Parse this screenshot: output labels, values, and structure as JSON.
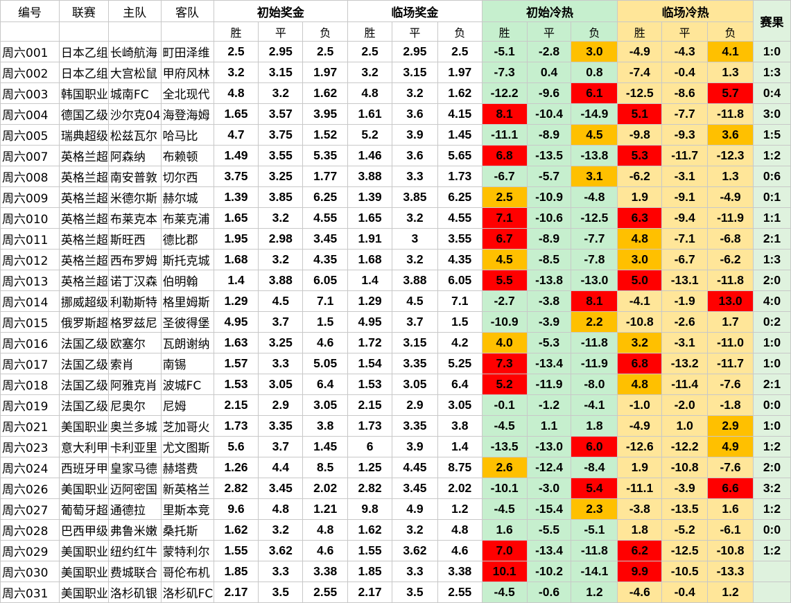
{
  "headers": {
    "id": "编号",
    "league": "联赛",
    "home": "主队",
    "away": "客队",
    "init_prize": "初始奖金",
    "final_prize": "临场奖金",
    "init_heat": "初始冷热",
    "final_heat": "临场冷热",
    "result": "赛果",
    "win": "胜",
    "draw": "平",
    "loss": "负"
  },
  "colors": {
    "red": "#ff0000",
    "orange": "#ffc000",
    "green_fill": "#c6efce",
    "yellow_fill": "#ffe699"
  },
  "rows": [
    {
      "id": "周六001",
      "league": "日本乙组",
      "home": "长崎航海",
      "away": "町田泽维",
      "o": [
        "2.5",
        "2.95",
        "2.5"
      ],
      "c": [
        "2.5",
        "2.95",
        "2.5"
      ],
      "ih": [
        "-5.1",
        "-2.8",
        "3.0"
      ],
      "fh": [
        "-4.9",
        "-4.3",
        "4.1"
      ],
      "res": "1:0",
      "ihc": [
        "",
        "",
        "o"
      ],
      "fhc": [
        "",
        "",
        "o"
      ]
    },
    {
      "id": "周六002",
      "league": "日本乙组",
      "home": "大宫松鼠",
      "away": "甲府风林",
      "o": [
        "3.2",
        "3.15",
        "1.97"
      ],
      "c": [
        "3.2",
        "3.15",
        "1.97"
      ],
      "ih": [
        "-7.3",
        "0.4",
        "0.8"
      ],
      "fh": [
        "-7.4",
        "-0.4",
        "1.3"
      ],
      "res": "1:3",
      "ihc": [
        "",
        "",
        ""
      ],
      "fhc": [
        "",
        "",
        ""
      ]
    },
    {
      "id": "周六003",
      "league": "韩国职业",
      "home": "城南FC",
      "away": "全北现代",
      "o": [
        "4.8",
        "3.2",
        "1.62"
      ],
      "c": [
        "4.8",
        "3.2",
        "1.62"
      ],
      "ih": [
        "-12.2",
        "-9.6",
        "6.1"
      ],
      "fh": [
        "-12.5",
        "-8.6",
        "5.7"
      ],
      "res": "0:4",
      "ihc": [
        "",
        "",
        "r"
      ],
      "fhc": [
        "",
        "",
        "r"
      ]
    },
    {
      "id": "周六004",
      "league": "德国乙级",
      "home": "沙尔克04",
      "away": "海登海姆",
      "o": [
        "1.65",
        "3.57",
        "3.95"
      ],
      "c": [
        "1.61",
        "3.6",
        "4.15"
      ],
      "ih": [
        "8.1",
        "-10.4",
        "-14.9"
      ],
      "fh": [
        "5.1",
        "-7.7",
        "-11.8"
      ],
      "res": "3:0",
      "ihc": [
        "r",
        "",
        ""
      ],
      "fhc": [
        "r",
        "",
        ""
      ]
    },
    {
      "id": "周六005",
      "league": "瑞典超级",
      "home": "松兹瓦尔",
      "away": "哈马比",
      "o": [
        "4.7",
        "3.75",
        "1.52"
      ],
      "c": [
        "5.2",
        "3.9",
        "1.45"
      ],
      "ih": [
        "-11.1",
        "-8.9",
        "4.5"
      ],
      "fh": [
        "-9.8",
        "-9.3",
        "3.6"
      ],
      "res": "1:5",
      "ihc": [
        "",
        "",
        "o"
      ],
      "fhc": [
        "",
        "",
        "o"
      ]
    },
    {
      "id": "周六007",
      "league": "英格兰超",
      "home": "阿森纳",
      "away": "布赖顿",
      "o": [
        "1.49",
        "3.55",
        "5.35"
      ],
      "c": [
        "1.46",
        "3.6",
        "5.65"
      ],
      "ih": [
        "6.8",
        "-13.5",
        "-13.8"
      ],
      "fh": [
        "5.3",
        "-11.7",
        "-12.3"
      ],
      "res": "1:2",
      "ihc": [
        "r",
        "",
        ""
      ],
      "fhc": [
        "r",
        "",
        ""
      ]
    },
    {
      "id": "周六008",
      "league": "英格兰超",
      "home": "南安普敦",
      "away": "切尔西",
      "o": [
        "3.75",
        "3.25",
        "1.77"
      ],
      "c": [
        "3.88",
        "3.3",
        "1.73"
      ],
      "ih": [
        "-6.7",
        "-5.7",
        "3.1"
      ],
      "fh": [
        "-6.2",
        "-3.1",
        "1.3"
      ],
      "res": "0:6",
      "ihc": [
        "",
        "",
        "o"
      ],
      "fhc": [
        "",
        "",
        ""
      ]
    },
    {
      "id": "周六009",
      "league": "英格兰超",
      "home": "米德尔斯",
      "away": "赫尔城",
      "o": [
        "1.39",
        "3.85",
        "6.25"
      ],
      "c": [
        "1.39",
        "3.85",
        "6.25"
      ],
      "ih": [
        "2.5",
        "-10.9",
        "-4.8"
      ],
      "fh": [
        "1.9",
        "-9.1",
        "-4.9"
      ],
      "res": "0:1",
      "ihc": [
        "o",
        "",
        ""
      ],
      "fhc": [
        "",
        "",
        ""
      ]
    },
    {
      "id": "周六010",
      "league": "英格兰超",
      "home": "布莱克本",
      "away": "布莱克浦",
      "o": [
        "1.65",
        "3.2",
        "4.55"
      ],
      "c": [
        "1.65",
        "3.2",
        "4.55"
      ],
      "ih": [
        "7.1",
        "-10.6",
        "-12.5"
      ],
      "fh": [
        "6.3",
        "-9.4",
        "-11.9"
      ],
      "res": "1:1",
      "ihc": [
        "r",
        "",
        ""
      ],
      "fhc": [
        "r",
        "",
        ""
      ]
    },
    {
      "id": "周六011",
      "league": "英格兰超",
      "home": "斯旺西",
      "away": "德比郡",
      "o": [
        "1.95",
        "2.98",
        "3.45"
      ],
      "c": [
        "1.91",
        "3",
        "3.55"
      ],
      "ih": [
        "6.7",
        "-8.9",
        "-7.7"
      ],
      "fh": [
        "4.8",
        "-7.1",
        "-6.8"
      ],
      "res": "2:1",
      "ihc": [
        "r",
        "",
        ""
      ],
      "fhc": [
        "o",
        "",
        ""
      ]
    },
    {
      "id": "周六012",
      "league": "英格兰超",
      "home": "西布罗姆",
      "away": "斯托克城",
      "o": [
        "1.68",
        "3.2",
        "4.35"
      ],
      "c": [
        "1.68",
        "3.2",
        "4.35"
      ],
      "ih": [
        "4.5",
        "-8.5",
        "-7.8"
      ],
      "fh": [
        "3.0",
        "-6.7",
        "-6.2"
      ],
      "res": "1:3",
      "ihc": [
        "o",
        "",
        ""
      ],
      "fhc": [
        "o",
        "",
        ""
      ]
    },
    {
      "id": "周六013",
      "league": "英格兰超",
      "home": "诺丁汉森",
      "away": "伯明翰",
      "o": [
        "1.4",
        "3.88",
        "6.05"
      ],
      "c": [
        "1.4",
        "3.88",
        "6.05"
      ],
      "ih": [
        "5.5",
        "-13.8",
        "-13.0"
      ],
      "fh": [
        "5.0",
        "-13.1",
        "-11.8"
      ],
      "res": "2:0",
      "ihc": [
        "r",
        "",
        ""
      ],
      "fhc": [
        "r",
        "",
        ""
      ]
    },
    {
      "id": "周六014",
      "league": "挪威超级",
      "home": "利勒斯特",
      "away": "格里姆斯",
      "o": [
        "1.29",
        "4.5",
        "7.1"
      ],
      "c": [
        "1.29",
        "4.5",
        "7.1"
      ],
      "ih": [
        "-2.7",
        "-3.8",
        "8.1"
      ],
      "fh": [
        "-4.1",
        "-1.9",
        "13.0"
      ],
      "res": "4:0",
      "ihc": [
        "",
        "",
        "r"
      ],
      "fhc": [
        "",
        "",
        "r"
      ]
    },
    {
      "id": "周六015",
      "league": "俄罗斯超",
      "home": "格罗兹尼",
      "away": "圣彼得堡",
      "o": [
        "4.95",
        "3.7",
        "1.5"
      ],
      "c": [
        "4.95",
        "3.7",
        "1.5"
      ],
      "ih": [
        "-10.9",
        "-3.9",
        "2.2"
      ],
      "fh": [
        "-10.8",
        "-2.6",
        "1.7"
      ],
      "res": "0:2",
      "ihc": [
        "",
        "",
        "o"
      ],
      "fhc": [
        "",
        "",
        ""
      ]
    },
    {
      "id": "周六016",
      "league": "法国乙级",
      "home": "欧塞尔",
      "away": "瓦朗谢纳",
      "o": [
        "1.63",
        "3.25",
        "4.6"
      ],
      "c": [
        "1.72",
        "3.15",
        "4.2"
      ],
      "ih": [
        "4.0",
        "-5.3",
        "-11.8"
      ],
      "fh": [
        "3.2",
        "-3.1",
        "-11.0"
      ],
      "res": "1:0",
      "ihc": [
        "o",
        "",
        ""
      ],
      "fhc": [
        "o",
        "",
        ""
      ]
    },
    {
      "id": "周六017",
      "league": "法国乙级",
      "home": "索肖",
      "away": "南锡",
      "o": [
        "1.57",
        "3.3",
        "5.05"
      ],
      "c": [
        "1.54",
        "3.35",
        "5.25"
      ],
      "ih": [
        "7.3",
        "-13.4",
        "-11.9"
      ],
      "fh": [
        "6.8",
        "-13.2",
        "-11.7"
      ],
      "res": "1:0",
      "ihc": [
        "r",
        "",
        ""
      ],
      "fhc": [
        "r",
        "",
        ""
      ]
    },
    {
      "id": "周六018",
      "league": "法国乙级",
      "home": "阿雅克肖",
      "away": "波城FC",
      "o": [
        "1.53",
        "3.05",
        "6.4"
      ],
      "c": [
        "1.53",
        "3.05",
        "6.4"
      ],
      "ih": [
        "5.2",
        "-11.9",
        "-8.0"
      ],
      "fh": [
        "4.8",
        "-11.4",
        "-7.6"
      ],
      "res": "2:1",
      "ihc": [
        "r",
        "",
        ""
      ],
      "fhc": [
        "o",
        "",
        ""
      ]
    },
    {
      "id": "周六019",
      "league": "法国乙级",
      "home": "尼奥尔",
      "away": "尼姆",
      "o": [
        "2.15",
        "2.9",
        "3.05"
      ],
      "c": [
        "2.15",
        "2.9",
        "3.05"
      ],
      "ih": [
        "-0.1",
        "-1.2",
        "-4.1"
      ],
      "fh": [
        "-1.0",
        "-2.0",
        "-1.8"
      ],
      "res": "0:0",
      "ihc": [
        "",
        "",
        ""
      ],
      "fhc": [
        "",
        "",
        ""
      ]
    },
    {
      "id": "周六021",
      "league": "美国职业",
      "home": "奥兰多城",
      "away": "芝加哥火",
      "o": [
        "1.73",
        "3.35",
        "3.8"
      ],
      "c": [
        "1.73",
        "3.35",
        "3.8"
      ],
      "ih": [
        "-4.5",
        "1.1",
        "1.8"
      ],
      "fh": [
        "-4.9",
        "1.0",
        "2.9"
      ],
      "res": "1:0",
      "ihc": [
        "",
        "",
        ""
      ],
      "fhc": [
        "",
        "",
        "o"
      ]
    },
    {
      "id": "周六023",
      "league": "意大利甲",
      "home": "卡利亚里",
      "away": "尤文图斯",
      "o": [
        "5.6",
        "3.7",
        "1.45"
      ],
      "c": [
        "6",
        "3.9",
        "1.4"
      ],
      "ih": [
        "-13.5",
        "-13.0",
        "6.0"
      ],
      "fh": [
        "-12.6",
        "-12.2",
        "4.9"
      ],
      "res": "1:2",
      "ihc": [
        "",
        "",
        "r"
      ],
      "fhc": [
        "",
        "",
        "o"
      ]
    },
    {
      "id": "周六024",
      "league": "西班牙甲",
      "home": "皇家马德",
      "away": "赫塔费",
      "o": [
        "1.26",
        "4.4",
        "8.5"
      ],
      "c": [
        "1.25",
        "4.45",
        "8.75"
      ],
      "ih": [
        "2.6",
        "-12.4",
        "-8.4"
      ],
      "fh": [
        "1.9",
        "-10.8",
        "-7.6"
      ],
      "res": "2:0",
      "ihc": [
        "o",
        "",
        ""
      ],
      "fhc": [
        "",
        "",
        ""
      ]
    },
    {
      "id": "周六026",
      "league": "美国职业",
      "home": "迈阿密国",
      "away": "新英格兰",
      "o": [
        "2.82",
        "3.45",
        "2.02"
      ],
      "c": [
        "2.82",
        "3.45",
        "2.02"
      ],
      "ih": [
        "-10.1",
        "-3.0",
        "5.4"
      ],
      "fh": [
        "-11.1",
        "-3.9",
        "6.6"
      ],
      "res": "3:2",
      "ihc": [
        "",
        "",
        "r"
      ],
      "fhc": [
        "",
        "",
        "r"
      ]
    },
    {
      "id": "周六027",
      "league": "葡萄牙超",
      "home": "通德拉",
      "away": "里斯本竞",
      "o": [
        "9.6",
        "4.8",
        "1.21"
      ],
      "c": [
        "9.8",
        "4.9",
        "1.2"
      ],
      "ih": [
        "-4.5",
        "-15.4",
        "2.3"
      ],
      "fh": [
        "-3.8",
        "-13.5",
        "1.6"
      ],
      "res": "1:2",
      "ihc": [
        "",
        "",
        "o"
      ],
      "fhc": [
        "",
        "",
        ""
      ]
    },
    {
      "id": "周六028",
      "league": "巴西甲级",
      "home": "弗鲁米嫩",
      "away": "桑托斯",
      "o": [
        "1.62",
        "3.2",
        "4.8"
      ],
      "c": [
        "1.62",
        "3.2",
        "4.8"
      ],
      "ih": [
        "1.6",
        "-5.5",
        "-5.1"
      ],
      "fh": [
        "1.8",
        "-5.2",
        "-6.1"
      ],
      "res": "0:0",
      "ihc": [
        "",
        "",
        ""
      ],
      "fhc": [
        "",
        "",
        ""
      ]
    },
    {
      "id": "周六029",
      "league": "美国职业",
      "home": "纽约红牛",
      "away": "蒙特利尔",
      "o": [
        "1.55",
        "3.62",
        "4.6"
      ],
      "c": [
        "1.55",
        "3.62",
        "4.6"
      ],
      "ih": [
        "7.0",
        "-13.4",
        "-11.8"
      ],
      "fh": [
        "6.2",
        "-12.5",
        "-10.8"
      ],
      "res": "1:2",
      "ihc": [
        "r",
        "",
        ""
      ],
      "fhc": [
        "r",
        "",
        ""
      ]
    },
    {
      "id": "周六030",
      "league": "美国职业",
      "home": "费城联合",
      "away": "哥伦布机",
      "o": [
        "1.85",
        "3.3",
        "3.38"
      ],
      "c": [
        "1.85",
        "3.3",
        "3.38"
      ],
      "ih": [
        "10.1",
        "-10.2",
        "-14.1"
      ],
      "fh": [
        "9.9",
        "-10.5",
        "-13.3"
      ],
      "res": "",
      "ihc": [
        "r",
        "",
        ""
      ],
      "fhc": [
        "r",
        "",
        ""
      ]
    },
    {
      "id": "周六031",
      "league": "美国职业",
      "home": "洛杉矶银",
      "away": "洛杉矶FC",
      "o": [
        "2.17",
        "3.5",
        "2.55"
      ],
      "c": [
        "2.17",
        "3.5",
        "2.55"
      ],
      "ih": [
        "-4.5",
        "-0.6",
        "1.2"
      ],
      "fh": [
        "-4.6",
        "-0.4",
        "1.2"
      ],
      "res": "",
      "ihc": [
        "",
        "",
        ""
      ],
      "fhc": [
        "",
        "",
        ""
      ]
    }
  ]
}
